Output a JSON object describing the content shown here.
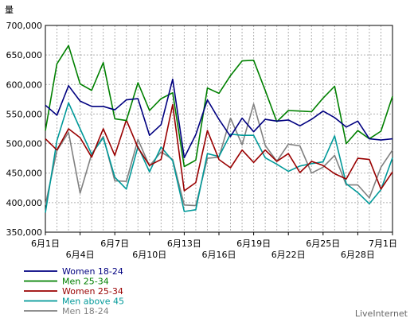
{
  "ylabel": "量",
  "footer": "LiveInternet",
  "chart_data": {
    "type": "line",
    "ylabel": "量",
    "ylim": [
      350000,
      700000
    ],
    "yticks": [
      "350,000",
      "400,000",
      "450,000",
      "500,000",
      "550,000",
      "600,000",
      "650,000",
      "700,000"
    ],
    "x_tick_labels_row1": [
      "6月1日",
      "6月7日",
      "6月13日",
      "6月19日",
      "6月25日",
      "7月1日"
    ],
    "x_tick_labels_row2": [
      "6月4日",
      "6月10日",
      "6月16日",
      "6月22日",
      "6月28日"
    ],
    "x": [
      "6月1日",
      "6月2日",
      "6月3日",
      "6月4日",
      "6月5日",
      "6月6日",
      "6月7日",
      "6月8日",
      "6月9日",
      "6月10日",
      "6月11日",
      "6月12日",
      "6月13日",
      "6月14日",
      "6月15日",
      "6月16日",
      "6月17日",
      "6月18日",
      "6月19日",
      "6月20日",
      "6月21日",
      "6月22日",
      "6月23日",
      "6月24日",
      "6月25日",
      "6月26日",
      "6月27日",
      "6月28日",
      "6月29日",
      "6月30日",
      "7月1日"
    ],
    "grid": true,
    "legend_position": "bottom-left",
    "series": [
      {
        "name": "Women 18-24",
        "color": "#000080",
        "values": [
          565000,
          548000,
          598000,
          572000,
          563000,
          563000,
          557000,
          574000,
          576000,
          514000,
          532000,
          609000,
          476000,
          515000,
          574000,
          541000,
          512000,
          543000,
          520000,
          541000,
          538000,
          540000,
          530000,
          541000,
          555000,
          544000,
          528000,
          538000,
          508000,
          506000,
          508000
        ]
      },
      {
        "name": "Men 25-34",
        "color": "#008000",
        "values": [
          522000,
          635000,
          666000,
          601000,
          590000,
          637000,
          542000,
          539000,
          603000,
          556000,
          576000,
          586000,
          461000,
          472000,
          594000,
          585000,
          615000,
          640000,
          641000,
          590000,
          537000,
          556000,
          555000,
          554000,
          577000,
          597000,
          500000,
          522000,
          508000,
          521000,
          580000
        ]
      },
      {
        "name": "Women 25-34",
        "color": "#990000",
        "values": [
          508000,
          489000,
          525000,
          510000,
          477000,
          525000,
          480000,
          540000,
          493000,
          463000,
          473000,
          566000,
          420000,
          434000,
          522000,
          473000,
          459000,
          489000,
          468000,
          489000,
          470000,
          483000,
          451000,
          470000,
          463000,
          449000,
          440000,
          475000,
          473000,
          423000,
          452000
        ]
      },
      {
        "name": "Men above 45",
        "color": "#009999",
        "values": [
          383000,
          505000,
          569000,
          525000,
          482000,
          510000,
          443000,
          423000,
          495000,
          452000,
          494000,
          471000,
          385000,
          388000,
          483000,
          478000,
          516000,
          514000,
          514000,
          476000,
          465000,
          453000,
          462000,
          466000,
          469000,
          513000,
          432000,
          417000,
          398000,
          422000,
          476000
        ]
      },
      {
        "name": "Men 18-24",
        "color": "#808080",
        "values": [
          396000,
          488000,
          519000,
          416000,
          482000,
          512000,
          437000,
          436000,
          507000,
          462000,
          486000,
          473000,
          396000,
          395000,
          475000,
          477000,
          543000,
          498000,
          567000,
          497000,
          470000,
          499000,
          496000,
          450000,
          460000,
          480000,
          430000,
          430000,
          408000,
          460000,
          489000
        ]
      }
    ]
  }
}
